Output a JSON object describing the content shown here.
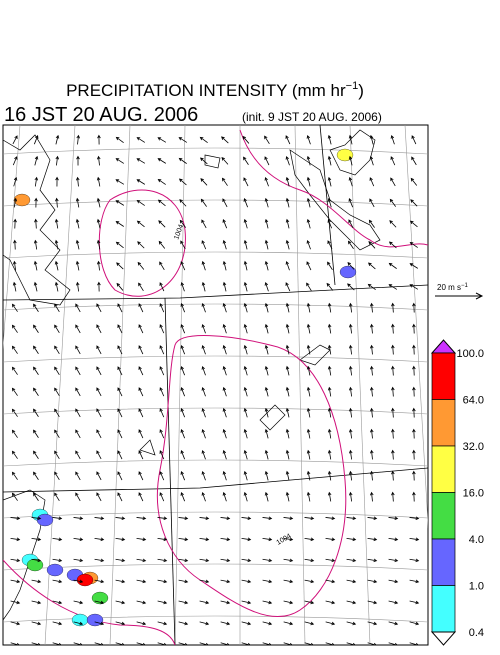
{
  "title": {
    "main": "PRECIPITATION INTENSITY (mm hr",
    "exp": "−1",
    "close": ")"
  },
  "valid_time": "16 JST 20 AUG. 2006",
  "init_time": "(init. 9 JST 20 AUG. 2006)",
  "wind_legend": {
    "main": "20 m s",
    "exp": "−1"
  },
  "contour_labels": [
    "1004",
    "1004"
  ],
  "colorbar": {
    "labels": [
      "100.0",
      "64.0",
      "32.0",
      "16.0",
      "4.0",
      "1.0",
      "0.4"
    ],
    "colors": [
      "#ff0000",
      "#ff9933",
      "#ffff44",
      "#44dd44",
      "#6666ff",
      "#44ffff"
    ],
    "over_color": "#cc33ff",
    "under_color": "#ffffff"
  }
}
